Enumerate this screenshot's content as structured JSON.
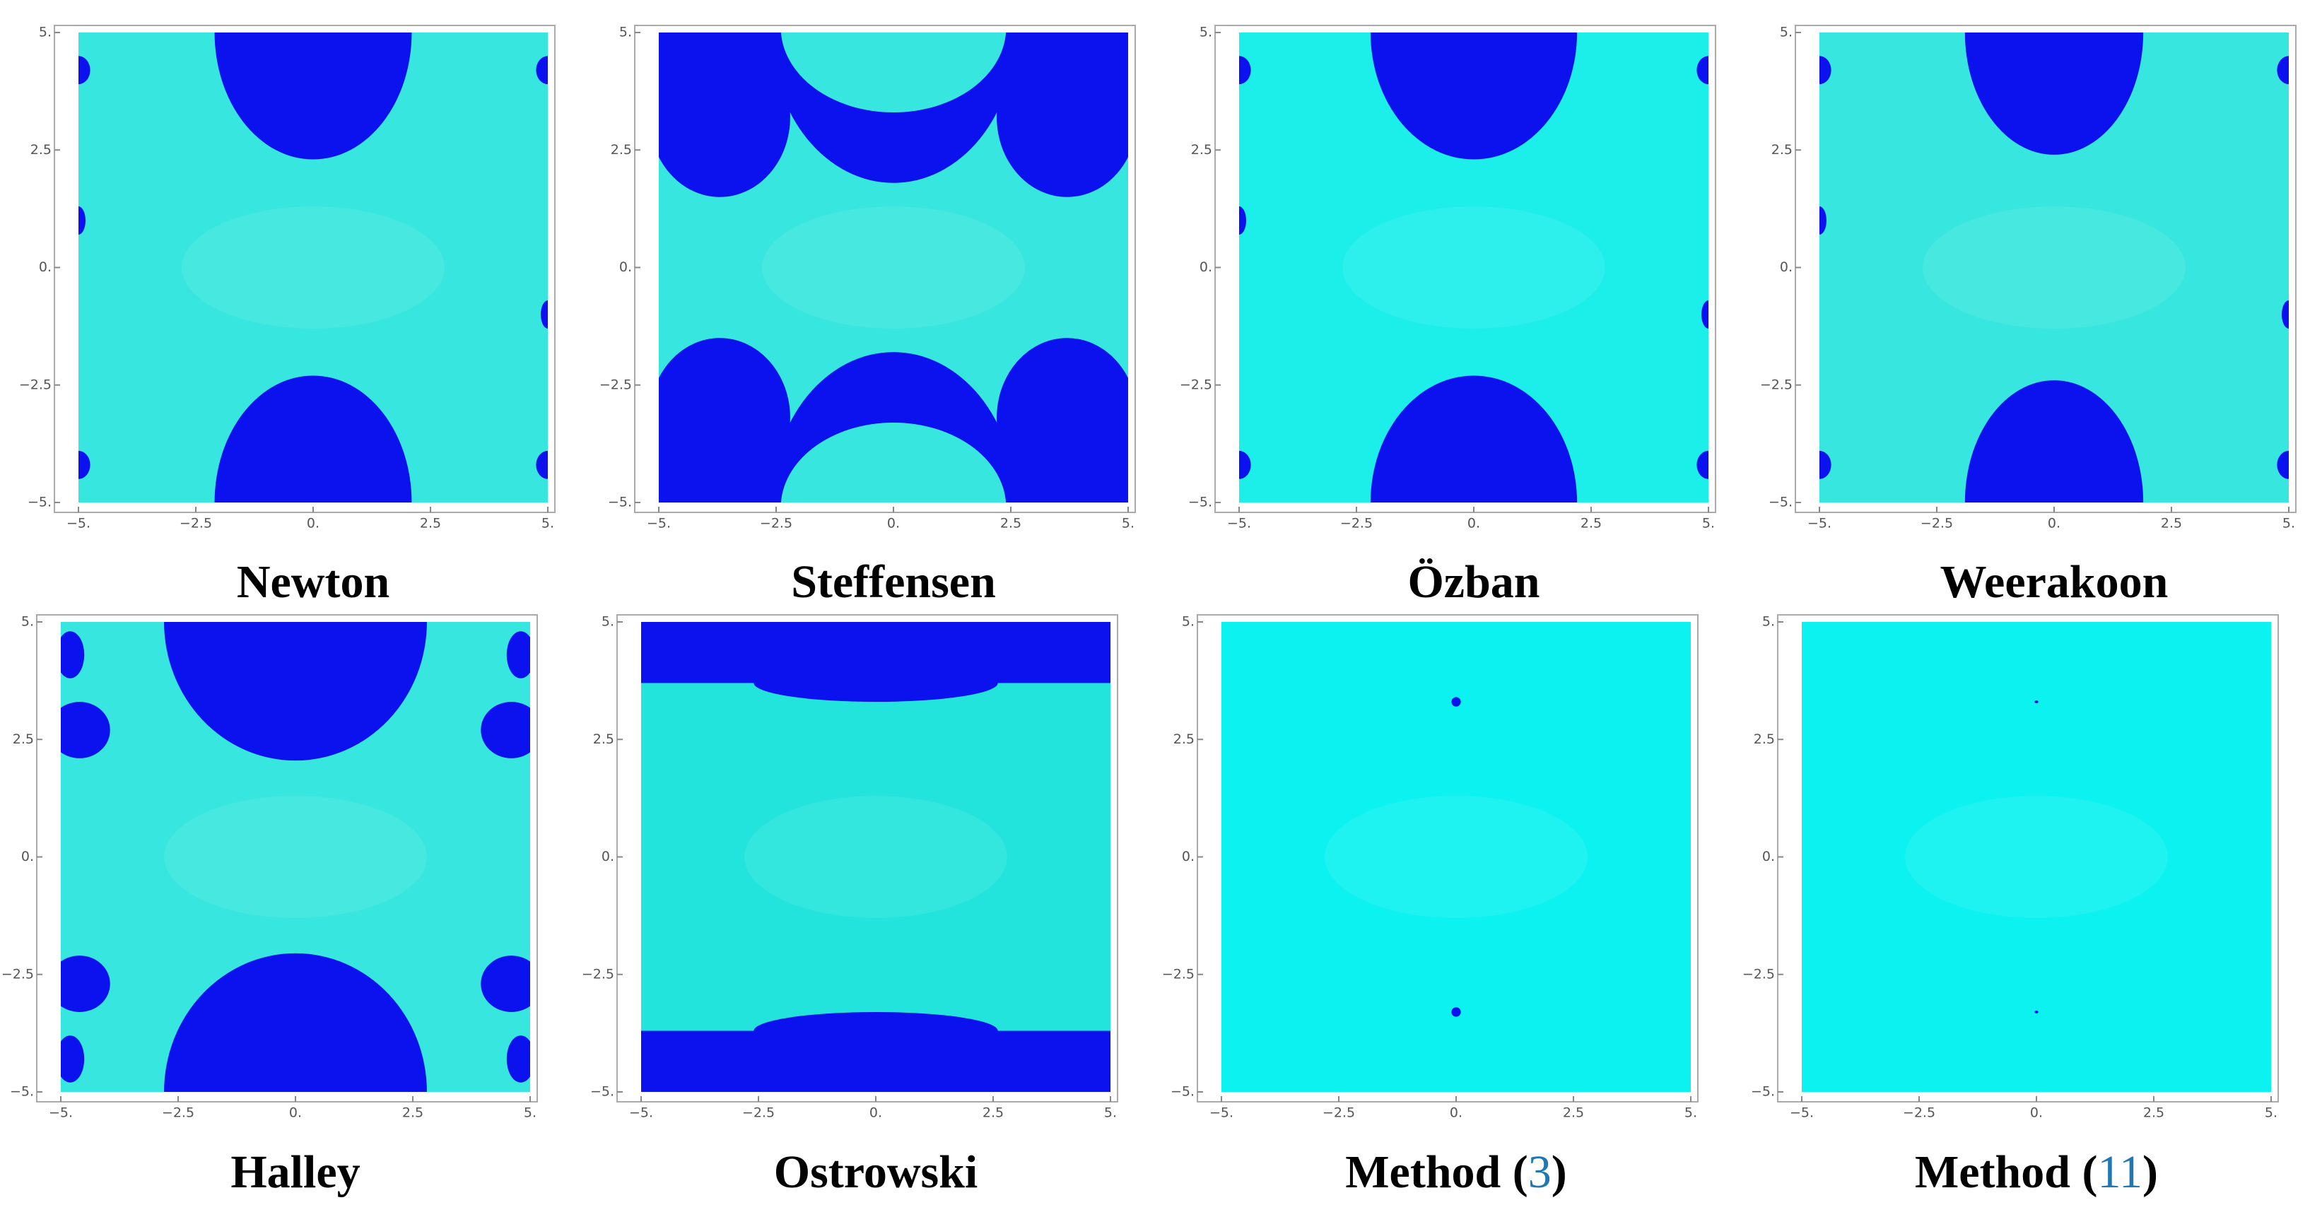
{
  "chart_data": [
    {
      "type": "basin",
      "title_parts": [
        {
          "text": "Newton"
        }
      ],
      "xlim": [
        -5,
        5
      ],
      "ylim": [
        -5,
        5
      ],
      "xticks": [
        {
          "value": -5,
          "label": "−5."
        },
        {
          "value": -2.5,
          "label": "−2.5"
        },
        {
          "value": 0,
          "label": "0."
        },
        {
          "value": 2.5,
          "label": "2.5"
        },
        {
          "value": 5,
          "label": "5."
        }
      ],
      "yticks": [
        {
          "value": -5,
          "label": "−5."
        },
        {
          "value": -2.5,
          "label": "−2.5"
        },
        {
          "value": 0,
          "label": "0."
        },
        {
          "value": 2.5,
          "label": "2.5"
        },
        {
          "value": 5,
          "label": "5."
        }
      ],
      "background": "#37e6de",
      "basin_color": "#0b12ee"
    },
    {
      "type": "basin",
      "title_parts": [
        {
          "text": "Steffensen"
        }
      ],
      "xlim": [
        -5,
        5
      ],
      "ylim": [
        -5,
        5
      ],
      "xticks": [
        {
          "value": -5,
          "label": "−5."
        },
        {
          "value": -2.5,
          "label": "−2.5"
        },
        {
          "value": 0,
          "label": "0."
        },
        {
          "value": 2.5,
          "label": "2.5"
        },
        {
          "value": 5,
          "label": "5."
        }
      ],
      "yticks": [
        {
          "value": -5,
          "label": "−5."
        },
        {
          "value": -2.5,
          "label": "−2.5"
        },
        {
          "value": 0,
          "label": "0."
        },
        {
          "value": 2.5,
          "label": "2.5"
        },
        {
          "value": 5,
          "label": "5."
        }
      ],
      "background": "#37e6de",
      "basin_color": "#0b12ee"
    },
    {
      "type": "basin",
      "title_parts": [
        {
          "text": "Özban"
        }
      ],
      "xlim": [
        -5,
        5
      ],
      "ylim": [
        -5,
        5
      ],
      "xticks": [
        {
          "value": -5,
          "label": "−5."
        },
        {
          "value": -2.5,
          "label": "−2.5"
        },
        {
          "value": 0,
          "label": "0."
        },
        {
          "value": 2.5,
          "label": "2.5"
        },
        {
          "value": 5,
          "label": "5."
        }
      ],
      "yticks": [
        {
          "value": -5,
          "label": "−5."
        },
        {
          "value": -2.5,
          "label": "−2.5"
        },
        {
          "value": 0,
          "label": "0."
        },
        {
          "value": 2.5,
          "label": "2.5"
        },
        {
          "value": 5,
          "label": "5."
        }
      ],
      "background": "#1ceeea",
      "basin_color": "#0b12ee"
    },
    {
      "type": "basin",
      "title_parts": [
        {
          "text": "Weerakoon"
        }
      ],
      "xlim": [
        -5,
        5
      ],
      "ylim": [
        -5,
        5
      ],
      "xticks": [
        {
          "value": -5,
          "label": "−5."
        },
        {
          "value": -2.5,
          "label": "−2.5"
        },
        {
          "value": 0,
          "label": "0."
        },
        {
          "value": 2.5,
          "label": "2.5"
        },
        {
          "value": 5,
          "label": "5."
        }
      ],
      "yticks": [
        {
          "value": -5,
          "label": "−5."
        },
        {
          "value": -2.5,
          "label": "−2.5"
        },
        {
          "value": 0,
          "label": "0."
        },
        {
          "value": 2.5,
          "label": "2.5"
        },
        {
          "value": 5,
          "label": "5."
        }
      ],
      "background": "#37e6de",
      "basin_color": "#0b12ee"
    },
    {
      "type": "basin",
      "title_parts": [
        {
          "text": "Halley"
        }
      ],
      "xlim": [
        -5,
        5
      ],
      "ylim": [
        -5,
        5
      ],
      "xticks": [
        {
          "value": -5,
          "label": "−5."
        },
        {
          "value": -2.5,
          "label": "−2.5"
        },
        {
          "value": 0,
          "label": "0."
        },
        {
          "value": 2.5,
          "label": "2.5"
        },
        {
          "value": 5,
          "label": "5."
        }
      ],
      "yticks": [
        {
          "value": -5,
          "label": "−5."
        },
        {
          "value": -2.5,
          "label": "−2.5"
        },
        {
          "value": 0,
          "label": "0."
        },
        {
          "value": 2.5,
          "label": "2.5"
        },
        {
          "value": 5,
          "label": "5."
        }
      ],
      "background": "#37e6de",
      "basin_color": "#0b12ee"
    },
    {
      "type": "basin",
      "title_parts": [
        {
          "text": "Ostrowski"
        }
      ],
      "xlim": [
        -5,
        5
      ],
      "ylim": [
        -5,
        5
      ],
      "xticks": [
        {
          "value": -5,
          "label": "−5."
        },
        {
          "value": -2.5,
          "label": "−2.5"
        },
        {
          "value": 0,
          "label": "0."
        },
        {
          "value": 2.5,
          "label": "2.5"
        },
        {
          "value": 5,
          "label": "5."
        }
      ],
      "yticks": [
        {
          "value": -5,
          "label": "−5."
        },
        {
          "value": -2.5,
          "label": "−2.5"
        },
        {
          "value": 0,
          "label": "0."
        },
        {
          "value": 2.5,
          "label": "2.5"
        },
        {
          "value": 5,
          "label": "5."
        }
      ],
      "background": "#22e4dc",
      "basin_color": "#0b12ee"
    },
    {
      "type": "basin",
      "title_parts": [
        {
          "text": "Method ("
        },
        {
          "text": "3",
          "color": "#1f77b4"
        },
        {
          "text": ")"
        }
      ],
      "xlim": [
        -5,
        5
      ],
      "ylim": [
        -5,
        5
      ],
      "xticks": [
        {
          "value": -5,
          "label": "−5."
        },
        {
          "value": -2.5,
          "label": "−2.5"
        },
        {
          "value": 0,
          "label": "0."
        },
        {
          "value": 2.5,
          "label": "2.5"
        },
        {
          "value": 5,
          "label": "5."
        }
      ],
      "yticks": [
        {
          "value": -5,
          "label": "−5."
        },
        {
          "value": -2.5,
          "label": "−2.5"
        },
        {
          "value": 0,
          "label": "0."
        },
        {
          "value": 2.5,
          "label": "2.5"
        },
        {
          "value": 5,
          "label": "5."
        }
      ],
      "background": "#0cf2f0",
      "basin_color": "#0b12ee"
    },
    {
      "type": "basin",
      "title_parts": [
        {
          "text": "Method ("
        },
        {
          "text": "11",
          "color": "#1f77b4"
        },
        {
          "text": ")"
        }
      ],
      "xlim": [
        -5,
        5
      ],
      "ylim": [
        -5,
        5
      ],
      "xticks": [
        {
          "value": -5,
          "label": "−5."
        },
        {
          "value": -2.5,
          "label": "−2.5"
        },
        {
          "value": 0,
          "label": "0."
        },
        {
          "value": 2.5,
          "label": "2.5"
        },
        {
          "value": 5,
          "label": "5."
        }
      ],
      "yticks": [
        {
          "value": -5,
          "label": "−5."
        },
        {
          "value": -2.5,
          "label": "−2.5"
        },
        {
          "value": 0,
          "label": "0."
        },
        {
          "value": 2.5,
          "label": "2.5"
        },
        {
          "value": 5,
          "label": "5."
        }
      ],
      "background": "#0cf2f0",
      "basin_color": "#0b12ee"
    }
  ]
}
